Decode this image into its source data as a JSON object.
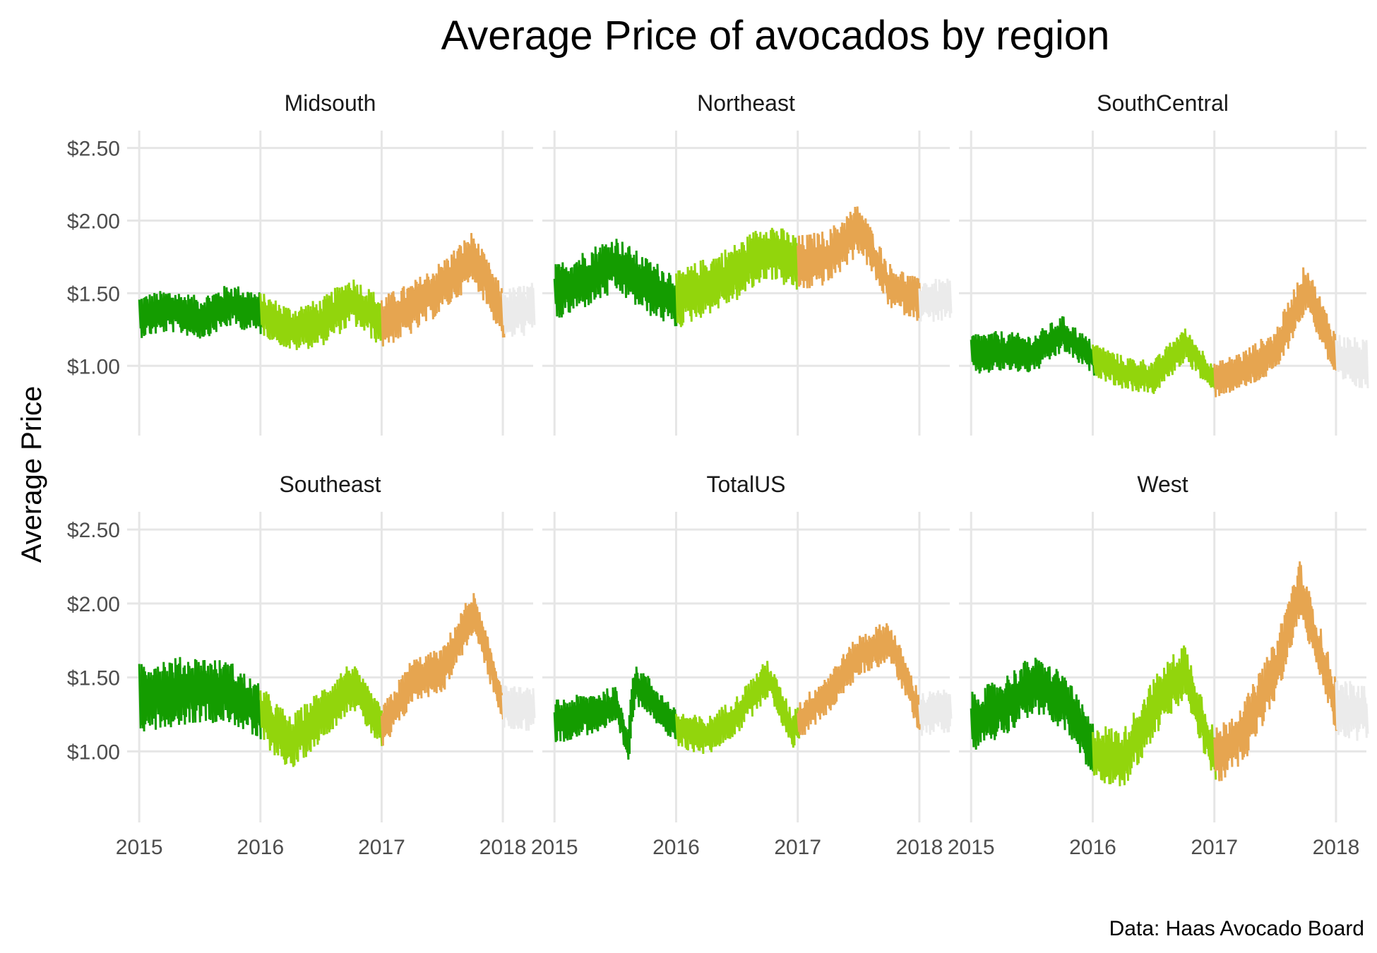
{
  "chart_data": {
    "type": "line",
    "title": "Average Price of avocados by region",
    "ylabel": "Average Price",
    "xlabel": "",
    "caption": "Data: Haas Avocado Board",
    "x_ticks": [
      "2015",
      "2016",
      "2017",
      "2018"
    ],
    "y_ticks": [
      "$1.00",
      "$1.50",
      "$2.00",
      "$2.50"
    ],
    "y_tick_values": [
      1.0,
      1.5,
      2.0,
      2.5
    ],
    "x_range": [
      2014.9,
      2018.25
    ],
    "y_range": [
      0.52,
      2.62
    ],
    "grid": true,
    "legend": "none",
    "year_colors": {
      "2015": "#149c00",
      "2016": "#92d50c",
      "2017": "#e6a550",
      "2018": "#ebebeb"
    },
    "panels": [
      {
        "name": "Midsouth",
        "trend": [
          [
            2015.0,
            1.34
          ],
          [
            2015.25,
            1.38
          ],
          [
            2015.5,
            1.33
          ],
          [
            2015.75,
            1.42
          ],
          [
            2016.0,
            1.36
          ],
          [
            2016.25,
            1.25
          ],
          [
            2016.5,
            1.3
          ],
          [
            2016.75,
            1.45
          ],
          [
            2017.0,
            1.3
          ],
          [
            2017.25,
            1.4
          ],
          [
            2017.5,
            1.55
          ],
          [
            2017.75,
            1.75
          ],
          [
            2018.0,
            1.35
          ],
          [
            2018.25,
            1.4
          ]
        ],
        "spread": [
          [
            2015.0,
            0.15
          ],
          [
            2016.0,
            0.15
          ],
          [
            2017.0,
            0.18
          ],
          [
            2018.0,
            0.18
          ]
        ]
      },
      {
        "name": "Northeast",
        "trend": [
          [
            2015.0,
            1.5
          ],
          [
            2015.25,
            1.6
          ],
          [
            2015.5,
            1.7
          ],
          [
            2015.75,
            1.55
          ],
          [
            2016.0,
            1.45
          ],
          [
            2016.25,
            1.55
          ],
          [
            2016.5,
            1.65
          ],
          [
            2016.75,
            1.8
          ],
          [
            2017.0,
            1.7
          ],
          [
            2017.25,
            1.75
          ],
          [
            2017.5,
            1.95
          ],
          [
            2017.75,
            1.55
          ],
          [
            2018.0,
            1.45
          ],
          [
            2018.25,
            1.45
          ]
        ],
        "spread": [
          [
            2015.0,
            0.2
          ],
          [
            2016.0,
            0.2
          ],
          [
            2017.0,
            0.2
          ],
          [
            2018.0,
            0.15
          ]
        ]
      },
      {
        "name": "SouthCentral",
        "trend": [
          [
            2015.0,
            1.08
          ],
          [
            2015.25,
            1.1
          ],
          [
            2015.5,
            1.08
          ],
          [
            2015.75,
            1.22
          ],
          [
            2016.0,
            1.05
          ],
          [
            2016.25,
            0.95
          ],
          [
            2016.5,
            0.92
          ],
          [
            2016.75,
            1.15
          ],
          [
            2017.0,
            0.9
          ],
          [
            2017.25,
            0.98
          ],
          [
            2017.5,
            1.1
          ],
          [
            2017.75,
            1.55
          ],
          [
            2018.0,
            1.05
          ],
          [
            2018.25,
            1.0
          ]
        ],
        "spread": [
          [
            2015.0,
            0.15
          ],
          [
            2016.0,
            0.12
          ],
          [
            2017.0,
            0.12
          ],
          [
            2018.0,
            0.18
          ]
        ]
      },
      {
        "name": "Southeast",
        "trend": [
          [
            2015.0,
            1.38
          ],
          [
            2015.25,
            1.4
          ],
          [
            2015.5,
            1.42
          ],
          [
            2015.75,
            1.4
          ],
          [
            2016.0,
            1.25
          ],
          [
            2016.25,
            1.05
          ],
          [
            2016.5,
            1.25
          ],
          [
            2016.75,
            1.45
          ],
          [
            2017.0,
            1.15
          ],
          [
            2017.25,
            1.48
          ],
          [
            2017.5,
            1.55
          ],
          [
            2017.75,
            1.95
          ],
          [
            2018.0,
            1.3
          ],
          [
            2018.25,
            1.28
          ]
        ],
        "spread": [
          [
            2015.0,
            0.25
          ],
          [
            2016.0,
            0.2
          ],
          [
            2017.0,
            0.15
          ],
          [
            2018.0,
            0.15
          ]
        ]
      },
      {
        "name": "TotalUS",
        "trend": [
          [
            2015.0,
            1.2
          ],
          [
            2015.25,
            1.25
          ],
          [
            2015.5,
            1.3
          ],
          [
            2015.6,
            1.05
          ],
          [
            2015.65,
            1.45
          ],
          [
            2015.75,
            1.4
          ],
          [
            2016.0,
            1.15
          ],
          [
            2016.25,
            1.1
          ],
          [
            2016.5,
            1.25
          ],
          [
            2016.75,
            1.5
          ],
          [
            2016.95,
            1.15
          ],
          [
            2017.0,
            1.2
          ],
          [
            2017.25,
            1.4
          ],
          [
            2017.5,
            1.65
          ],
          [
            2017.75,
            1.75
          ],
          [
            2018.0,
            1.25
          ],
          [
            2018.25,
            1.28
          ]
        ],
        "spread": [
          [
            2015.0,
            0.15
          ],
          [
            2016.0,
            0.13
          ],
          [
            2017.0,
            0.13
          ],
          [
            2018.0,
            0.15
          ]
        ]
      },
      {
        "name": "West",
        "trend": [
          [
            2015.0,
            1.2
          ],
          [
            2015.25,
            1.3
          ],
          [
            2015.5,
            1.45
          ],
          [
            2015.75,
            1.35
          ],
          [
            2016.0,
            1.0
          ],
          [
            2016.25,
            0.95
          ],
          [
            2016.5,
            1.3
          ],
          [
            2016.75,
            1.55
          ],
          [
            2017.0,
            0.95
          ],
          [
            2017.25,
            1.15
          ],
          [
            2017.5,
            1.55
          ],
          [
            2017.7,
            2.1
          ],
          [
            2017.85,
            1.7
          ],
          [
            2018.0,
            1.3
          ],
          [
            2018.25,
            1.25
          ]
        ],
        "spread": [
          [
            2015.0,
            0.2
          ],
          [
            2016.0,
            0.2
          ],
          [
            2017.0,
            0.2
          ],
          [
            2018.0,
            0.2
          ]
        ]
      }
    ]
  }
}
